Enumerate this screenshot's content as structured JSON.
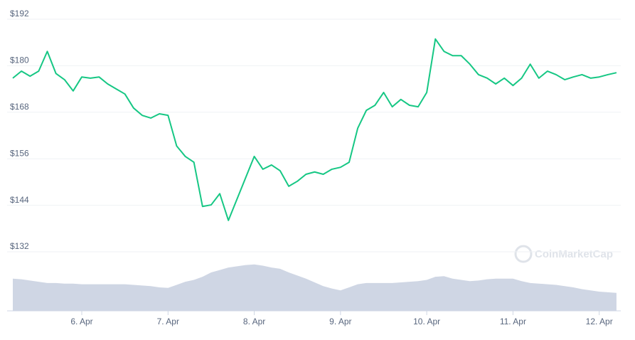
{
  "chart_data": {
    "type": "line",
    "x": [
      5.2,
      5.3,
      5.4,
      5.5,
      5.6,
      5.7,
      5.8,
      5.9,
      6.0,
      6.1,
      6.2,
      6.3,
      6.4,
      6.5,
      6.6,
      6.7,
      6.8,
      6.9,
      7.0,
      7.1,
      7.2,
      7.3,
      7.4,
      7.5,
      7.6,
      7.7,
      7.8,
      7.9,
      8.0,
      8.1,
      8.2,
      8.3,
      8.4,
      8.5,
      8.6,
      8.7,
      8.8,
      8.9,
      9.0,
      9.1,
      9.2,
      9.3,
      9.4,
      9.5,
      9.6,
      9.7,
      9.8,
      9.9,
      10.0,
      10.1,
      10.2,
      10.3,
      10.4,
      10.5,
      10.6,
      10.7,
      10.8,
      10.9,
      11.0,
      11.1,
      11.2,
      11.3,
      11.4,
      11.5,
      11.6,
      11.7,
      11.8,
      11.9,
      12.0,
      12.1,
      12.2
    ],
    "series": [
      {
        "color": "#16c784",
        "values": [
          176.8,
          178.6,
          177.3,
          178.6,
          183.7,
          178,
          176.4,
          173.5,
          177.1,
          176.8,
          177.1,
          175.3,
          174,
          172.7,
          169.1,
          167.2,
          166.5,
          167.6,
          167.2,
          159.3,
          156.6,
          155.1,
          143.7,
          144.1,
          147,
          140.1,
          145.6,
          151.1,
          156.6,
          153.3,
          154.4,
          152.9,
          148.9,
          150.2,
          152,
          152.6,
          152,
          153.3,
          153.8,
          155.1,
          163.9,
          168.5,
          169.8,
          173.1,
          169.4,
          171.3,
          169.8,
          169.4,
          173.1,
          186.9,
          183.7,
          182.6,
          182.6,
          180.4,
          177.7,
          176.8,
          175.3,
          176.8,
          174.9,
          176.8,
          180.4,
          176.8,
          178.6,
          177.7,
          176.4,
          177.1,
          177.7,
          176.8,
          177.1,
          177.7,
          178.2
        ]
      },
      {
        "type": "area",
        "axis": "y2",
        "color": "#cfd6e4",
        "values": [
          52,
          51,
          49,
          47,
          45,
          45,
          44,
          44,
          43,
          43,
          43,
          43,
          43,
          43,
          42,
          41,
          40,
          38,
          37,
          42,
          47,
          50,
          55,
          62,
          66,
          70,
          72,
          74,
          75,
          73,
          70,
          68,
          62,
          57,
          52,
          46,
          40,
          36,
          33,
          38,
          43,
          45,
          45,
          45,
          45,
          46,
          47,
          48,
          50,
          55,
          56,
          52,
          50,
          48,
          49,
          51,
          52,
          52,
          52,
          48,
          45,
          44,
          43,
          42,
          40,
          38,
          35,
          33,
          31,
          30,
          29
        ]
      }
    ],
    "xlim": [
      5.2,
      12.25
    ],
    "xticks": [
      {
        "value": 6,
        "label": "6. Apr"
      },
      {
        "value": 7,
        "label": "7. Apr"
      },
      {
        "value": 8,
        "label": "8. Apr"
      },
      {
        "value": 9,
        "label": "9. Apr"
      },
      {
        "value": 10,
        "label": "10. Apr"
      },
      {
        "value": 11,
        "label": "11. Apr"
      },
      {
        "value": 12,
        "label": "12. Apr"
      }
    ],
    "ylim": [
      132,
      192
    ],
    "yticks": [
      {
        "value": 132,
        "label": "$132"
      },
      {
        "value": 144,
        "label": "$144"
      },
      {
        "value": 156,
        "label": "$156"
      },
      {
        "value": 168,
        "label": "$168"
      },
      {
        "value": 180,
        "label": "$180"
      },
      {
        "value": 192,
        "label": "$192"
      }
    ],
    "y2lim": [
      0,
      100
    ],
    "grid": true,
    "watermark": "CoinMarketCap"
  }
}
